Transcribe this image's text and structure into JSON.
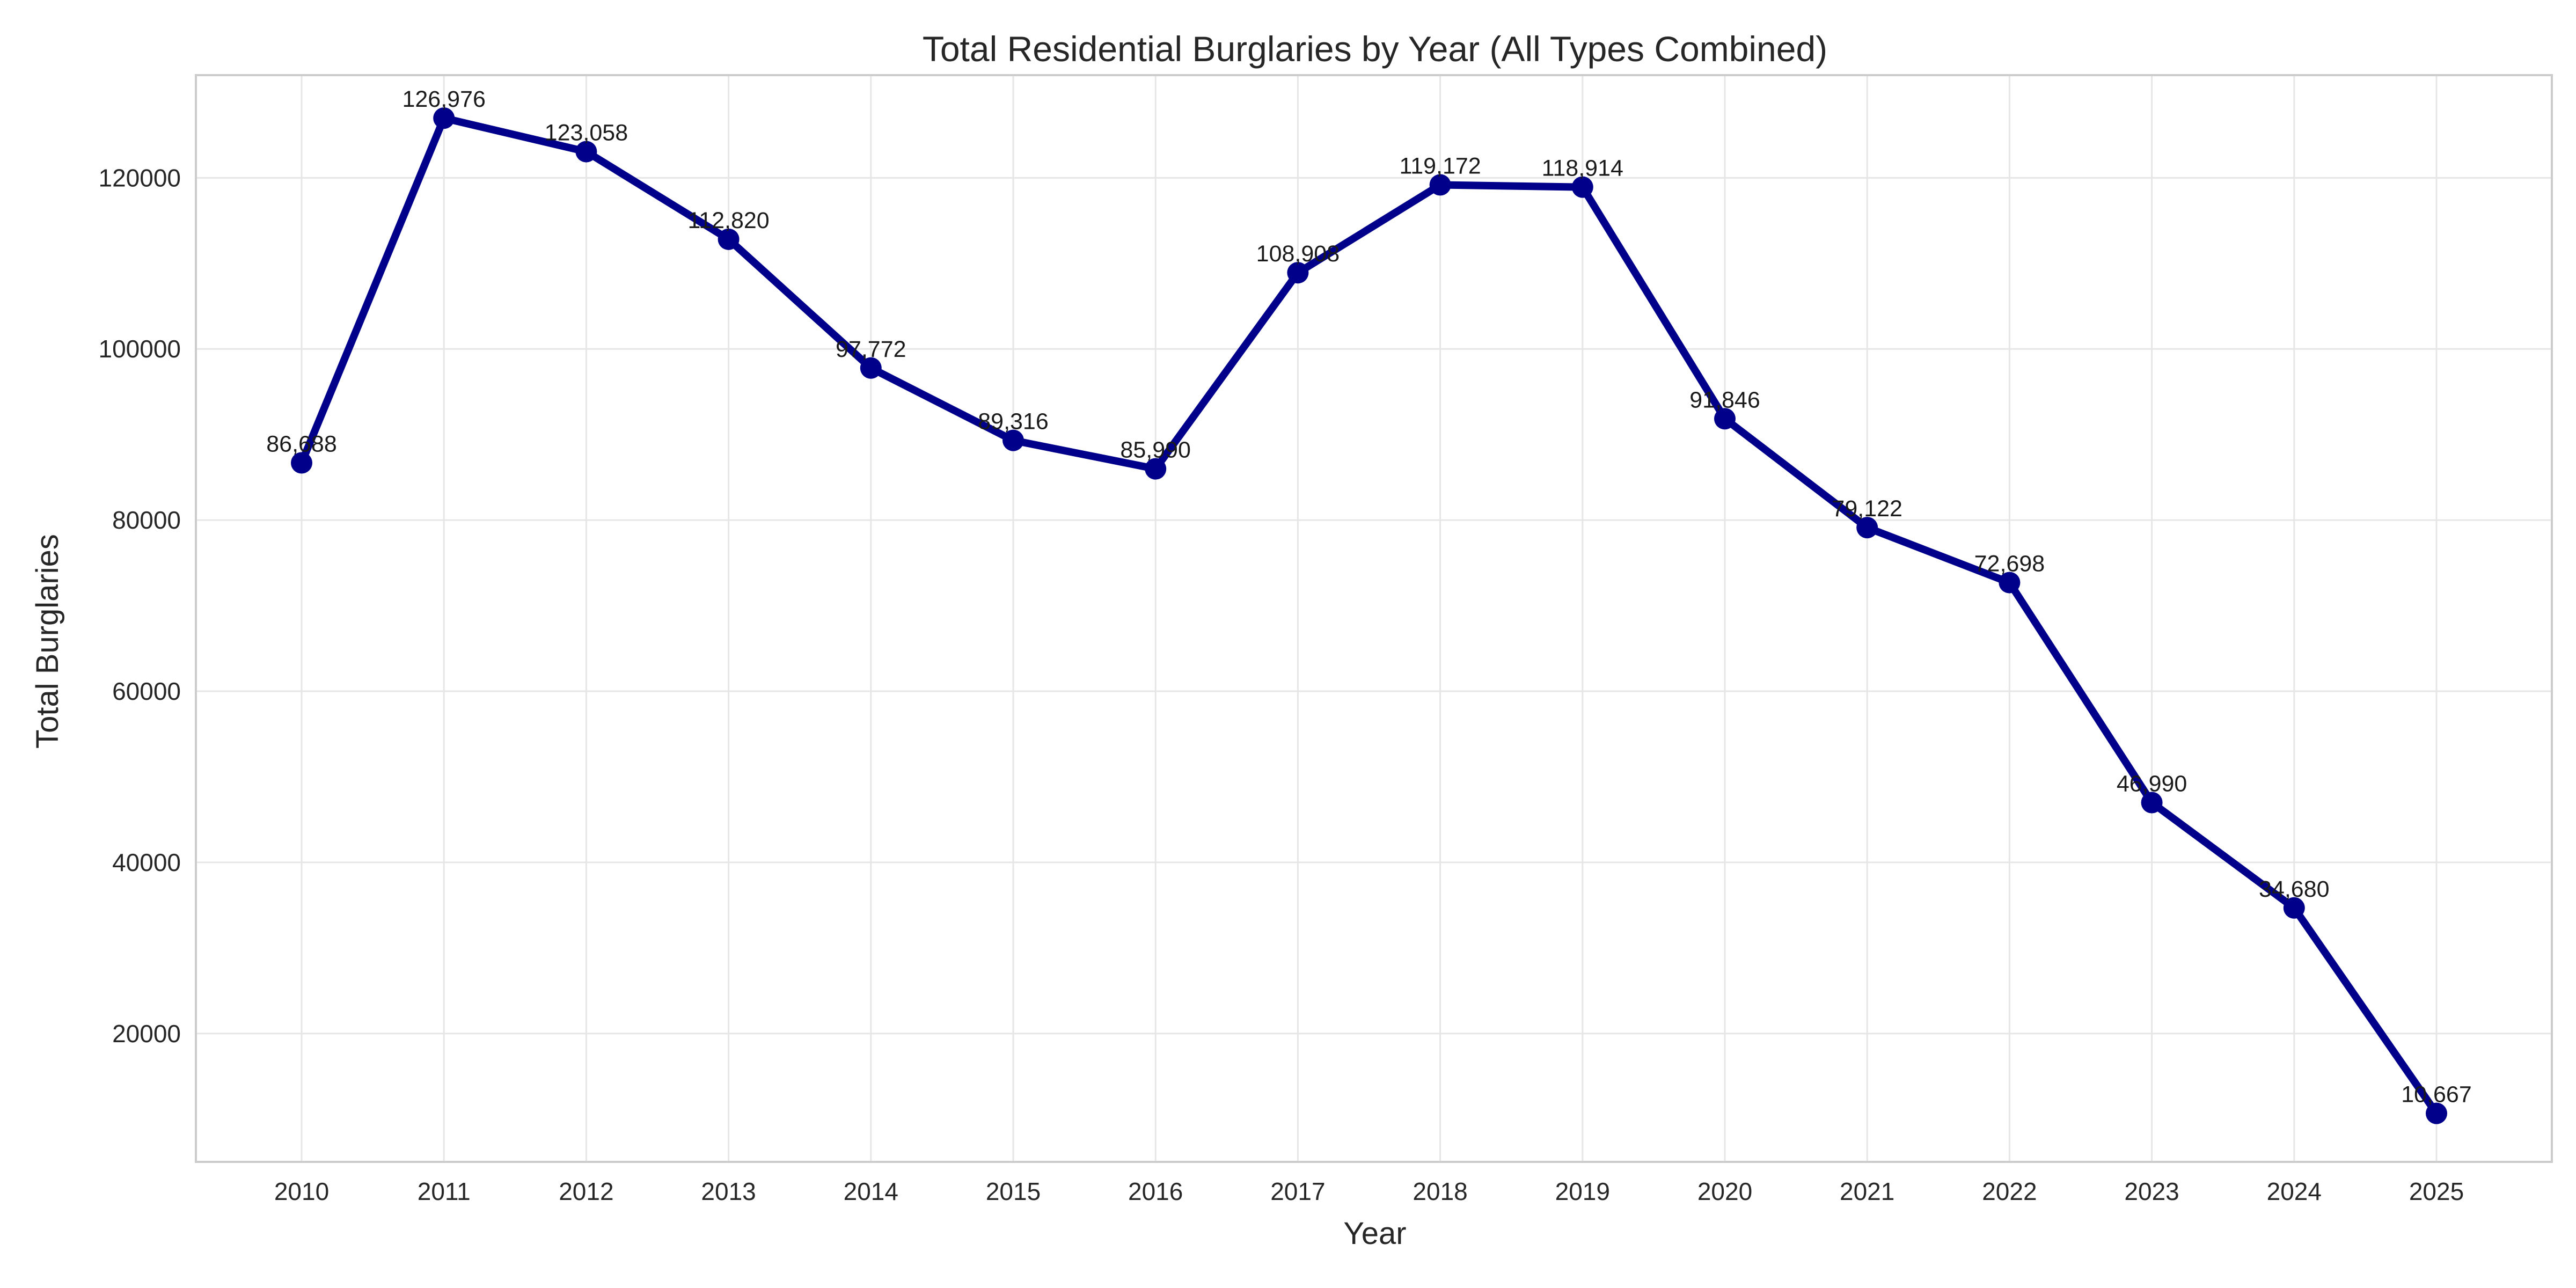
{
  "chart_data": {
    "type": "line",
    "title": "Total Residential Burglaries by Year (All Types Combined)",
    "xlabel": "Year",
    "ylabel": "Total Burglaries",
    "grid": true,
    "categories": [
      "2010",
      "2011",
      "2012",
      "2013",
      "2014",
      "2015",
      "2016",
      "2017",
      "2018",
      "2019",
      "2020",
      "2021",
      "2022",
      "2023",
      "2024",
      "2025"
    ],
    "series": [
      {
        "name": "Total Burglaries",
        "color": "#00008b",
        "values": [
          86688,
          126976,
          123058,
          112820,
          97772,
          89316,
          85990,
          108908,
          119172,
          118914,
          91846,
          79122,
          72698,
          46990,
          34680,
          10667
        ],
        "data_labels": [
          "86,688",
          "126,976",
          "123,058",
          "112,820",
          "97,772",
          "89,316",
          "85,990",
          "108,908",
          "119,172",
          "118,914",
          "91,846",
          "79,122",
          "72,698",
          "46,990",
          "34,680",
          "10,667"
        ]
      }
    ],
    "ylim": [
      5000,
      132000
    ],
    "y_ticks": [
      20000,
      40000,
      60000,
      80000,
      100000,
      120000
    ],
    "y_tick_labels": [
      "20000",
      "40000",
      "60000",
      "80000",
      "100000",
      "120000"
    ]
  }
}
